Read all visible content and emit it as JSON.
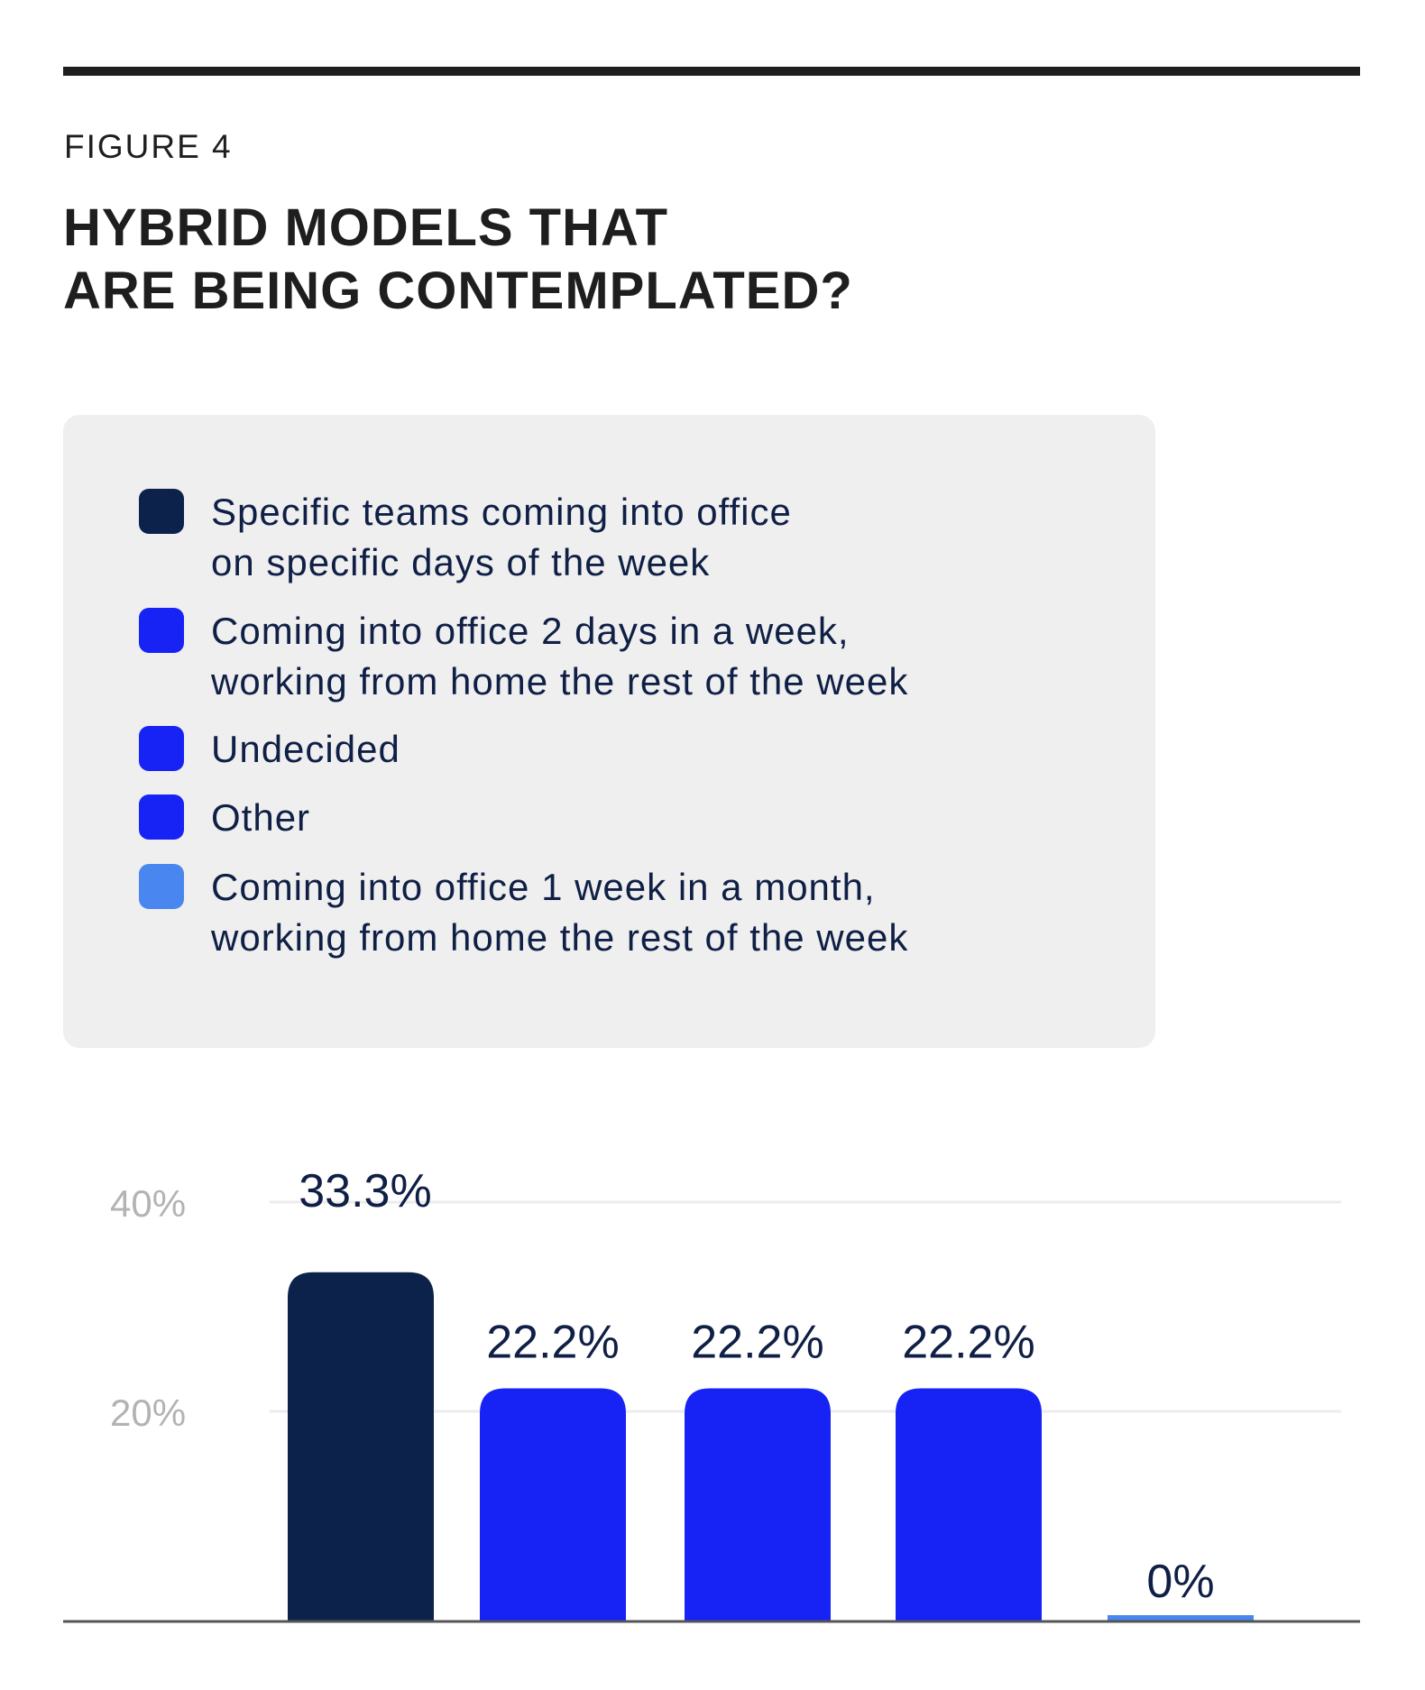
{
  "figure_label": "FIGURE 4",
  "title_line1": "HYBRID MODELS THAT",
  "title_line2": "ARE BEING CONTEMPLATED?",
  "chart_data": {
    "type": "bar",
    "title": "HYBRID MODELS THAT ARE BEING CONTEMPLATED?",
    "categories": [
      "Specific teams coming into office\non specific days of the week",
      "Coming into office 2 days in a week,\nworking from home the rest of the week",
      "Undecided",
      "Other",
      "Coming into office 1 week in a month,\nworking from home the rest of the week"
    ],
    "values": [
      33.3,
      22.2,
      22.2,
      22.2,
      0
    ],
    "value_labels": [
      "33.3%",
      "22.2%",
      "22.2%",
      "22.2%",
      "0%"
    ],
    "colors": [
      "#0d224a",
      "#1722f5",
      "#1722f5",
      "#1722f5",
      "#4a86f0"
    ],
    "yticks": [
      20,
      40
    ],
    "ytick_labels": [
      "20%",
      "40%"
    ],
    "ylim": [
      0,
      40
    ],
    "grid": true,
    "legend_placement": "top",
    "xlabel": "",
    "ylabel": ""
  }
}
